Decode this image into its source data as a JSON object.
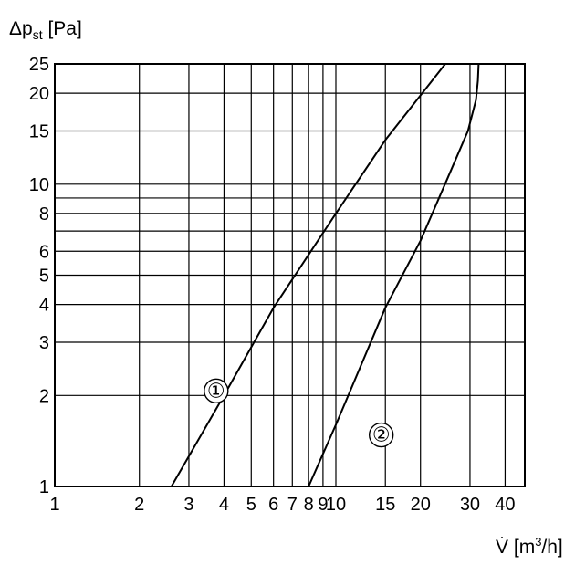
{
  "chart_data": {
    "type": "line",
    "x_scale": "log",
    "y_scale": "log",
    "xlim": [
      1,
      47
    ],
    "ylim": [
      1,
      25
    ],
    "grid": true,
    "x_ticks": [
      1,
      2,
      3,
      4,
      5,
      6,
      7,
      8,
      9,
      10,
      15,
      20,
      30,
      40
    ],
    "x_tick_labels": [
      "1",
      "2",
      "3",
      "4",
      "5",
      "6",
      "7",
      "8",
      "9",
      "10",
      "15",
      "20",
      "30",
      "40"
    ],
    "y_ticks": [
      1,
      2,
      3,
      4,
      5,
      6,
      8,
      10,
      15,
      20,
      25
    ],
    "y_tick_labels": [
      "1",
      "2",
      "3",
      "4",
      "5",
      "6",
      "8",
      "10",
      "15",
      "20",
      "25"
    ],
    "y_extra_gridlines": [
      7,
      9
    ],
    "xlabel": {
      "symbol": "V̇",
      "unit_prefix": "[m",
      "unit_exp": "3",
      "unit_suffix": "/h]"
    },
    "ylabel": {
      "symbol": "Δp",
      "subscript": "st",
      "unit": "[Pa]"
    },
    "series": [
      {
        "name": "①",
        "points": [
          [
            2.6,
            1
          ],
          [
            4,
            2
          ],
          [
            6,
            3.9
          ],
          [
            10,
            8
          ],
          [
            15,
            14
          ],
          [
            24.5,
            25
          ]
        ],
        "label_at": [
          3.75,
          2.07
        ]
      },
      {
        "name": "②",
        "points": [
          [
            8,
            1
          ],
          [
            10,
            1.6
          ],
          [
            15,
            3.9
          ],
          [
            20,
            6.5
          ],
          [
            25,
            10.5
          ],
          [
            29.5,
            15
          ],
          [
            31.5,
            19
          ],
          [
            32,
            22
          ],
          [
            32.2,
            25
          ]
        ],
        "label_at": [
          14.5,
          1.48
        ]
      }
    ]
  }
}
